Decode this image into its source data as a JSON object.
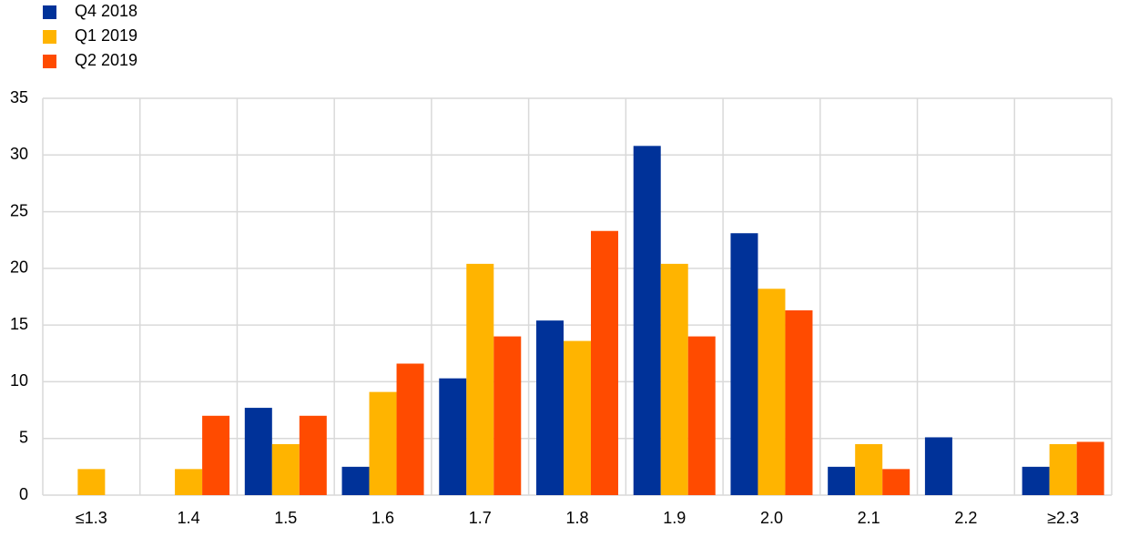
{
  "chart_data": {
    "type": "bar",
    "categories": [
      "≤1.3",
      "1.4",
      "1.5",
      "1.6",
      "1.7",
      "1.8",
      "1.9",
      "2.0",
      "2.1",
      "2.2",
      "≥2.3"
    ],
    "series": [
      {
        "name": "Q4 2018",
        "color": "#003299",
        "values": [
          0,
          0,
          7.7,
          2.5,
          10.3,
          15.4,
          30.8,
          23.1,
          2.5,
          5.1,
          2.5
        ]
      },
      {
        "name": "Q1 2019",
        "color": "#ffb400",
        "values": [
          2.3,
          2.3,
          4.5,
          9.1,
          20.4,
          13.6,
          20.4,
          18.2,
          4.5,
          0,
          4.5
        ]
      },
      {
        "name": "Q2 2019",
        "color": "#ff4b00",
        "values": [
          0,
          7.0,
          7.0,
          11.6,
          14.0,
          23.3,
          14.0,
          16.3,
          2.3,
          0,
          4.7
        ]
      }
    ],
    "ylim": [
      0,
      35
    ],
    "yticks": [
      0,
      5,
      10,
      15,
      20,
      25,
      30,
      35
    ],
    "grid": true,
    "legend": "top-left"
  }
}
